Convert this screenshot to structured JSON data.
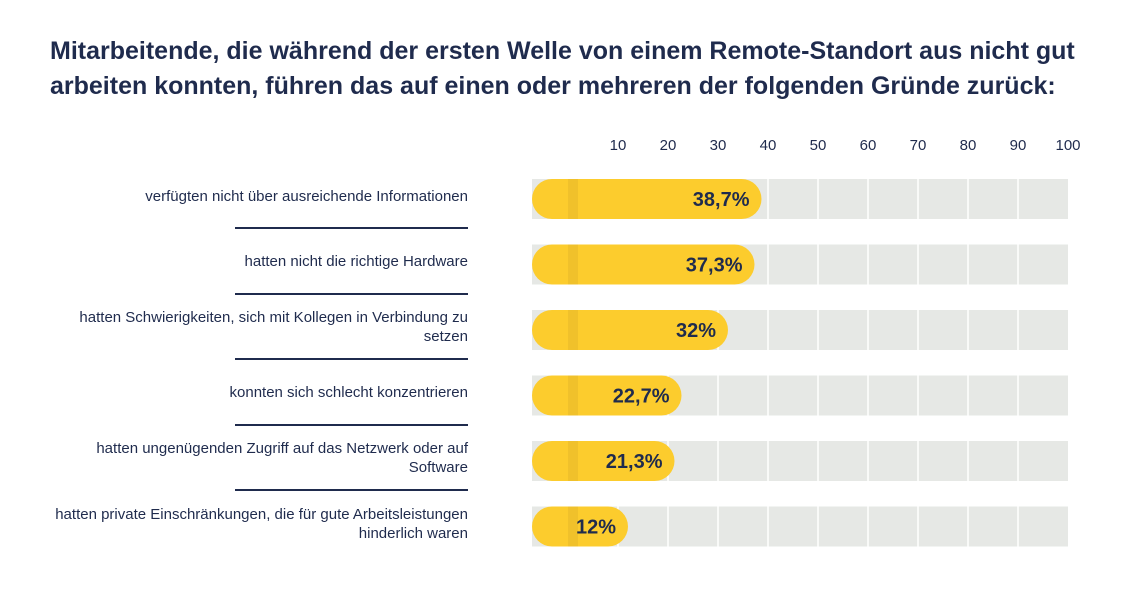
{
  "chart_data": {
    "type": "bar",
    "orientation": "horizontal",
    "title": "Mitarbeitende, die während der ersten Welle von einem Remote-Standort aus nicht gut arbeiten konnten, führen das auf einen oder mehreren der folgenden Gründe zurück:",
    "categories": [
      "verfügten nicht über ausreichende Informationen",
      "hatten nicht die richtige Hardware",
      "hatten Schwierigkeiten, sich mit Kollegen in Verbindung zu setzen",
      "konnten sich schlecht konzentrieren",
      "hatten ungenügenden Zugriff auf das Netzwerk oder auf Software",
      "hatten private Einschränkungen, die für gute Arbeitsleistungen hinderlich waren"
    ],
    "values": [
      38.7,
      37.3,
      32,
      22.7,
      21.3,
      12
    ],
    "value_labels": [
      "38,7%",
      "37,3%",
      "32%",
      "22,7%",
      "21,3%",
      "12%"
    ],
    "xlim": [
      0,
      100
    ],
    "xticks": [
      10,
      20,
      30,
      40,
      50,
      60,
      70,
      80,
      90,
      100
    ],
    "grid": true,
    "colors": {
      "bar": "#fccc2d",
      "bar_shadow": "#e4b52a",
      "track": "#e6e8e5",
      "gridline": "#ffffff",
      "text": "#1f2b4d"
    }
  }
}
